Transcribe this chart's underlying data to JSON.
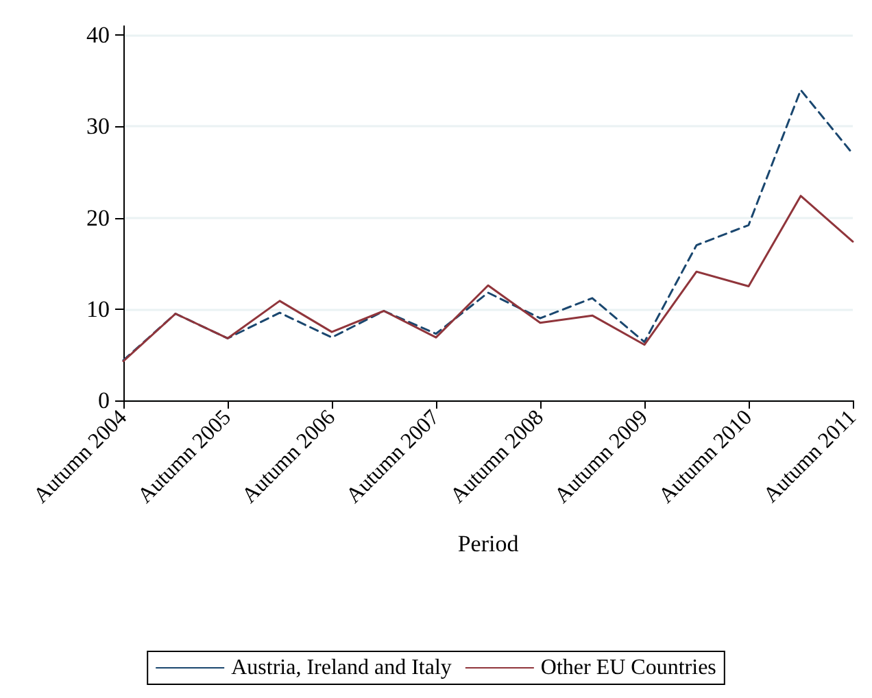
{
  "chart_data": {
    "type": "line",
    "xlabel": "Period",
    "categories": [
      "Autumn 2004",
      null,
      "Autumn 2005",
      null,
      "Autumn 2006",
      null,
      "Autumn 2007",
      null,
      "Autumn 2008",
      null,
      "Autumn 2009",
      null,
      "Autumn 2010",
      null,
      "Autumn 2011"
    ],
    "series": [
      {
        "name": "Austria, Ireland and Italy",
        "color": "#1a476f",
        "line_style": "dashed",
        "values": [
          4.4,
          9.5,
          6.8,
          9.6,
          6.9,
          9.8,
          7.3,
          11.8,
          9.0,
          11.2,
          6.4,
          17.0,
          19.2,
          34.0,
          27.0
        ]
      },
      {
        "name": "Other EU Countries",
        "color": "#90353b",
        "line_style": "solid",
        "values": [
          4.3,
          9.5,
          6.8,
          10.9,
          7.5,
          9.8,
          6.9,
          12.6,
          8.5,
          9.3,
          6.1,
          14.1,
          12.5,
          22.4,
          17.4
        ]
      }
    ],
    "ylim": [
      0,
      41
    ],
    "yticks": [
      0,
      10,
      20,
      30,
      40
    ],
    "grid": "y",
    "legend": "bottom",
    "marker": "none"
  }
}
